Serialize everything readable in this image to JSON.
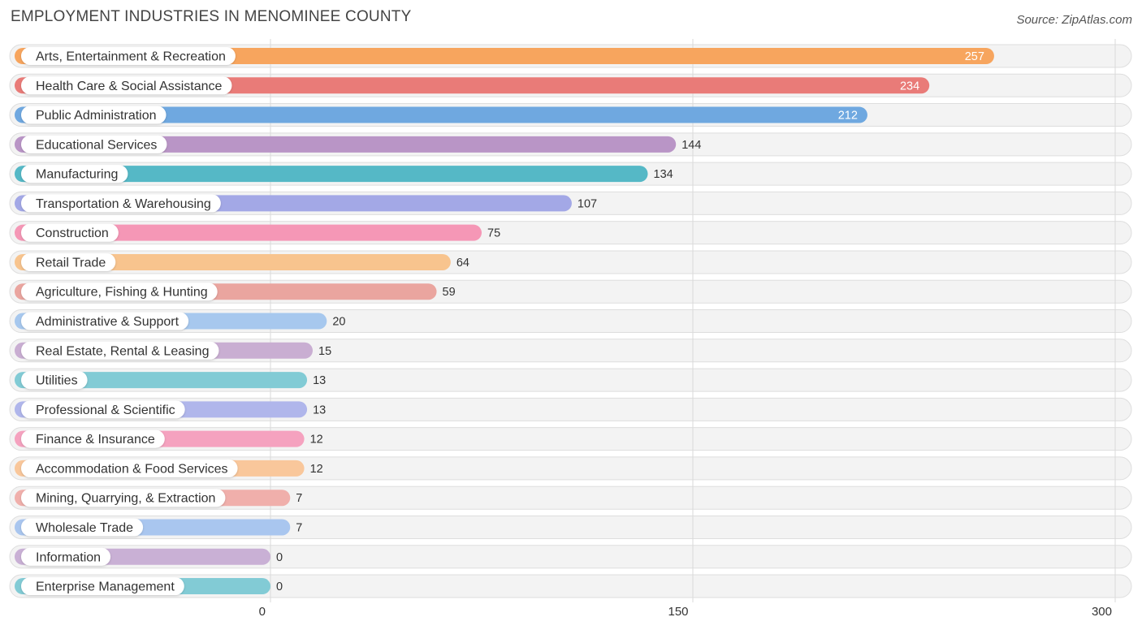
{
  "header": {
    "title": "EMPLOYMENT INDUSTRIES IN MENOMINEE COUNTY",
    "source": "Source: ZipAtlas.com"
  },
  "chart_data": {
    "type": "bar",
    "orientation": "horizontal",
    "title": "EMPLOYMENT INDUSTRIES IN MENOMINEE COUNTY",
    "xlim": [
      0,
      300
    ],
    "xticks": [
      0,
      150,
      300
    ],
    "grid": true,
    "categories": [
      "Arts, Entertainment & Recreation",
      "Health Care & Social Assistance",
      "Public Administration",
      "Educational Services",
      "Manufacturing",
      "Transportation & Warehousing",
      "Construction",
      "Retail Trade",
      "Agriculture, Fishing & Hunting",
      "Administrative & Support",
      "Real Estate, Rental & Leasing",
      "Utilities",
      "Professional & Scientific",
      "Finance & Insurance",
      "Accommodation & Food Services",
      "Mining, Quarrying, & Extraction",
      "Wholesale Trade",
      "Information",
      "Enterprise Management"
    ],
    "values": [
      257,
      234,
      212,
      144,
      134,
      107,
      75,
      64,
      59,
      20,
      15,
      13,
      13,
      12,
      12,
      7,
      7,
      0,
      0
    ],
    "colors": [
      "#f7a55e",
      "#e97b78",
      "#6fa8e0",
      "#b995c6",
      "#55b8c6",
      "#a3a8e6",
      "#f597b6",
      "#f8c48e",
      "#eaa59f",
      "#a7c8ee",
      "#c9aed2",
      "#82cbd5",
      "#b0b6eb",
      "#f5a2bf",
      "#f9c79b",
      "#f0afab",
      "#a9c6ef",
      "#c9b0d5",
      "#82cbd5"
    ]
  }
}
